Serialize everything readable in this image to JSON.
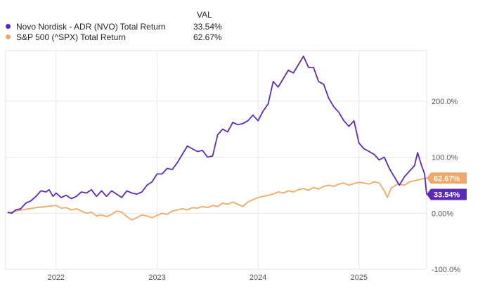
{
  "legend": {
    "header": "VAL",
    "items": [
      {
        "name": "Novo Nordisk - ADR (NVO) Total Return",
        "value": "33.54%",
        "color": "#5b2bb8"
      },
      {
        "name": "S&P 500 (^SPX) Total Return",
        "value": "62.67%",
        "color": "#f0a868"
      }
    ]
  },
  "chart_data": {
    "type": "line",
    "x_range": [
      2021.5,
      2025.67
    ],
    "ylim": [
      -100,
      290
    ],
    "grid": true,
    "x_ticks": [
      {
        "x": 2022,
        "label": "2022"
      },
      {
        "x": 2023,
        "label": "2023"
      },
      {
        "x": 2024,
        "label": "2024"
      },
      {
        "x": 2025,
        "label": "2025"
      }
    ],
    "y_ticks": [
      {
        "y": 200,
        "label": "200.0%"
      },
      {
        "y": 100,
        "label": "100.0%"
      },
      {
        "y": 0,
        "label": "0.00%"
      },
      {
        "y": -100,
        "label": "-100.0%"
      }
    ],
    "series": [
      {
        "name": "Novo Nordisk - ADR (NVO) Total Return",
        "color": "#5b2bb8",
        "end_label": "33.54%",
        "points": [
          [
            2021.52,
            2
          ],
          [
            2021.56,
            0
          ],
          [
            2021.6,
            6
          ],
          [
            2021.65,
            8
          ],
          [
            2021.7,
            18
          ],
          [
            2021.75,
            22
          ],
          [
            2021.8,
            30
          ],
          [
            2021.85,
            40
          ],
          [
            2021.9,
            38
          ],
          [
            2021.93,
            42
          ],
          [
            2021.97,
            30
          ],
          [
            2022.0,
            36
          ],
          [
            2022.05,
            28
          ],
          [
            2022.1,
            32
          ],
          [
            2022.15,
            26
          ],
          [
            2022.2,
            30
          ],
          [
            2022.25,
            38
          ],
          [
            2022.3,
            36
          ],
          [
            2022.35,
            42
          ],
          [
            2022.4,
            30
          ],
          [
            2022.45,
            40
          ],
          [
            2022.5,
            30
          ],
          [
            2022.55,
            40
          ],
          [
            2022.6,
            34
          ],
          [
            2022.65,
            28
          ],
          [
            2022.7,
            40
          ],
          [
            2022.75,
            36
          ],
          [
            2022.8,
            34
          ],
          [
            2022.85,
            38
          ],
          [
            2022.9,
            50
          ],
          [
            2022.95,
            56
          ],
          [
            2023.0,
            70
          ],
          [
            2023.05,
            70
          ],
          [
            2023.1,
            80
          ],
          [
            2023.15,
            78
          ],
          [
            2023.2,
            90
          ],
          [
            2023.25,
            105
          ],
          [
            2023.3,
            120
          ],
          [
            2023.35,
            115
          ],
          [
            2023.4,
            110
          ],
          [
            2023.45,
            112
          ],
          [
            2023.5,
            100
          ],
          [
            2023.55,
            102
          ],
          [
            2023.6,
            140
          ],
          [
            2023.65,
            150
          ],
          [
            2023.7,
            145
          ],
          [
            2023.75,
            162
          ],
          [
            2023.8,
            158
          ],
          [
            2023.85,
            160
          ],
          [
            2023.9,
            165
          ],
          [
            2023.95,
            175
          ],
          [
            2024.0,
            165
          ],
          [
            2024.05,
            182
          ],
          [
            2024.1,
            195
          ],
          [
            2024.15,
            235
          ],
          [
            2024.2,
            225
          ],
          [
            2024.25,
            240
          ],
          [
            2024.3,
            255
          ],
          [
            2024.35,
            250
          ],
          [
            2024.4,
            265
          ],
          [
            2024.45,
            280
          ],
          [
            2024.5,
            260
          ],
          [
            2024.55,
            260
          ],
          [
            2024.6,
            235
          ],
          [
            2024.65,
            230
          ],
          [
            2024.7,
            205
          ],
          [
            2024.75,
            190
          ],
          [
            2024.8,
            180
          ],
          [
            2024.85,
            165
          ],
          [
            2024.9,
            155
          ],
          [
            2024.95,
            165
          ],
          [
            2025.0,
            125
          ],
          [
            2025.05,
            115
          ],
          [
            2025.1,
            110
          ],
          [
            2025.15,
            105
          ],
          [
            2025.2,
            95
          ],
          [
            2025.25,
            100
          ],
          [
            2025.3,
            80
          ],
          [
            2025.35,
            65
          ],
          [
            2025.4,
            50
          ],
          [
            2025.45,
            65
          ],
          [
            2025.5,
            75
          ],
          [
            2025.55,
            85
          ],
          [
            2025.58,
            108
          ],
          [
            2025.62,
            85
          ],
          [
            2025.65,
            70
          ],
          [
            2025.67,
            33.54
          ]
        ]
      },
      {
        "name": "S&P 500 (^SPX) Total Return",
        "color": "#f0a868",
        "end_label": "62.67%",
        "points": [
          [
            2021.52,
            0
          ],
          [
            2021.6,
            4
          ],
          [
            2021.7,
            7
          ],
          [
            2021.8,
            10
          ],
          [
            2021.9,
            12
          ],
          [
            2022.0,
            14
          ],
          [
            2022.05,
            9
          ],
          [
            2022.1,
            10
          ],
          [
            2022.15,
            6
          ],
          [
            2022.2,
            8
          ],
          [
            2022.25,
            4
          ],
          [
            2022.3,
            0
          ],
          [
            2022.35,
            2
          ],
          [
            2022.4,
            -5
          ],
          [
            2022.45,
            -3
          ],
          [
            2022.5,
            -6
          ],
          [
            2022.55,
            -2
          ],
          [
            2022.6,
            4
          ],
          [
            2022.65,
            2
          ],
          [
            2022.7,
            -6
          ],
          [
            2022.75,
            -12
          ],
          [
            2022.8,
            -8
          ],
          [
            2022.85,
            -3
          ],
          [
            2022.9,
            -5
          ],
          [
            2022.95,
            -8
          ],
          [
            2023.0,
            -4
          ],
          [
            2023.05,
            0
          ],
          [
            2023.1,
            -2
          ],
          [
            2023.15,
            4
          ],
          [
            2023.2,
            6
          ],
          [
            2023.25,
            8
          ],
          [
            2023.3,
            6
          ],
          [
            2023.35,
            10
          ],
          [
            2023.4,
            9
          ],
          [
            2023.45,
            12
          ],
          [
            2023.5,
            10
          ],
          [
            2023.55,
            14
          ],
          [
            2023.6,
            12
          ],
          [
            2023.65,
            18
          ],
          [
            2023.7,
            16
          ],
          [
            2023.75,
            20
          ],
          [
            2023.8,
            16
          ],
          [
            2023.85,
            12
          ],
          [
            2023.9,
            20
          ],
          [
            2023.95,
            24
          ],
          [
            2024.0,
            28
          ],
          [
            2024.05,
            30
          ],
          [
            2024.1,
            32
          ],
          [
            2024.15,
            34
          ],
          [
            2024.2,
            38
          ],
          [
            2024.25,
            36
          ],
          [
            2024.3,
            40
          ],
          [
            2024.35,
            38
          ],
          [
            2024.4,
            42
          ],
          [
            2024.45,
            44
          ],
          [
            2024.5,
            41
          ],
          [
            2024.55,
            46
          ],
          [
            2024.6,
            43
          ],
          [
            2024.65,
            48
          ],
          [
            2024.7,
            50
          ],
          [
            2024.75,
            48
          ],
          [
            2024.8,
            52
          ],
          [
            2024.85,
            54
          ],
          [
            2024.9,
            50
          ],
          [
            2024.95,
            53
          ],
          [
            2025.0,
            55
          ],
          [
            2025.05,
            54
          ],
          [
            2025.1,
            52
          ],
          [
            2025.15,
            56
          ],
          [
            2025.2,
            54
          ],
          [
            2025.25,
            40
          ],
          [
            2025.28,
            28
          ],
          [
            2025.32,
            45
          ],
          [
            2025.38,
            52
          ],
          [
            2025.45,
            50
          ],
          [
            2025.5,
            56
          ],
          [
            2025.55,
            58
          ],
          [
            2025.6,
            60
          ],
          [
            2025.65,
            62
          ],
          [
            2025.67,
            62.67
          ]
        ]
      }
    ]
  }
}
